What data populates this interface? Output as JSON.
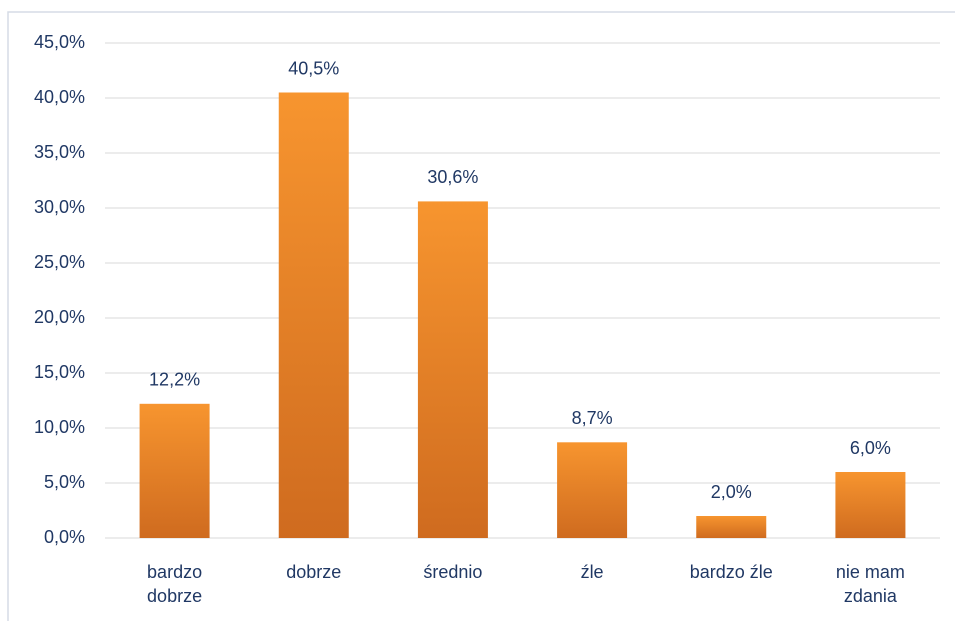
{
  "chart_data": {
    "type": "bar",
    "categories": [
      "bardzo dobrze",
      "dobrze",
      "średnio",
      "źle",
      "bardzo źle",
      "nie mam zdania"
    ],
    "values": [
      12.2,
      40.5,
      30.6,
      8.7,
      2.0,
      6.0
    ],
    "value_labels": [
      "12,2%",
      "40,5%",
      "30,6%",
      "8,7%",
      "2,0%",
      "6,0%"
    ],
    "color": "#f28a2b",
    "ylim": [
      0,
      45
    ],
    "yticks": [
      {
        "value": 0,
        "label": "0,0%"
      },
      {
        "value": 5,
        "label": "5,0%"
      },
      {
        "value": 10,
        "label": "10,0%"
      },
      {
        "value": 15,
        "label": "15,0%"
      },
      {
        "value": 20,
        "label": "20,0%"
      },
      {
        "value": 25,
        "label": "25,0%"
      },
      {
        "value": 30,
        "label": "30,0%"
      },
      {
        "value": 35,
        "label": "35,0%"
      },
      {
        "value": 40,
        "label": "40,0%"
      },
      {
        "value": 45,
        "label": "45,0%"
      }
    ],
    "grid": true
  }
}
